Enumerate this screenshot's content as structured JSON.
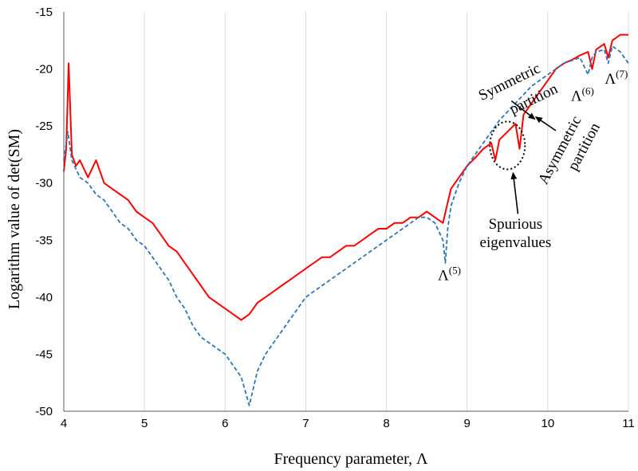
{
  "chart_data": {
    "type": "line",
    "title": "",
    "xlabel": "Frequency parameter, Λ",
    "ylabel": "Logarithm value of det(SM)",
    "xlim": [
      4,
      11
    ],
    "ylim": [
      -50,
      -15
    ],
    "xticks": [
      "4",
      "5",
      "6",
      "7",
      "8",
      "9",
      "10",
      "11"
    ],
    "yticks": [
      "-15",
      "-20",
      "-25",
      "-30",
      "-35",
      "-40",
      "-45",
      "-50"
    ],
    "grid": "vertical",
    "legend": "none",
    "series": [
      {
        "style": "solid",
        "color": "#ff0000",
        "x": [
          4.0,
          4.03,
          4.06,
          4.1,
          4.15,
          4.2,
          4.3,
          4.4,
          4.5,
          4.6,
          4.7,
          4.8,
          4.9,
          5.0,
          5.1,
          5.2,
          5.3,
          5.4,
          5.5,
          5.6,
          5.7,
          5.8,
          5.9,
          6.0,
          6.1,
          6.2,
          6.3,
          6.4,
          6.5,
          6.6,
          6.7,
          6.8,
          6.9,
          7.0,
          7.1,
          7.2,
          7.3,
          7.4,
          7.5,
          7.6,
          7.7,
          7.8,
          7.9,
          8.0,
          8.1,
          8.2,
          8.3,
          8.4,
          8.5,
          8.6,
          8.7,
          8.75,
          8.8,
          8.9,
          9.0,
          9.1,
          9.2,
          9.3,
          9.35,
          9.4,
          9.5,
          9.6,
          9.65,
          9.7,
          9.8,
          9.9,
          10.0,
          10.1,
          10.2,
          10.3,
          10.4,
          10.5,
          10.55,
          10.6,
          10.7,
          10.75,
          10.8,
          10.9,
          11.0
        ],
        "y": [
          -29.0,
          -27.0,
          -19.5,
          -27.5,
          -28.5,
          -28.0,
          -29.5,
          -28.0,
          -30.0,
          -30.5,
          -31.0,
          -31.5,
          -32.5,
          -33.0,
          -33.5,
          -34.5,
          -35.5,
          -36.0,
          -37.0,
          -38.0,
          -39.0,
          -40.0,
          -40.5,
          -41.0,
          -41.5,
          -42.0,
          -41.5,
          -40.5,
          -40.0,
          -39.5,
          -39.0,
          -38.5,
          -38.0,
          -37.5,
          -37.0,
          -36.5,
          -36.5,
          -36.0,
          -35.5,
          -35.5,
          -35.0,
          -34.5,
          -34.0,
          -34.0,
          -33.5,
          -33.5,
          -33.0,
          -33.0,
          -32.5,
          -33.0,
          -33.5,
          -32.0,
          -30.5,
          -29.5,
          -28.5,
          -27.8,
          -27.0,
          -26.5,
          -28.0,
          -26.2,
          -25.5,
          -24.8,
          -27.0,
          -24.0,
          -23.0,
          -22.0,
          -21.0,
          -20.0,
          -19.5,
          -19.2,
          -18.8,
          -18.5,
          -20.0,
          -18.3,
          -17.8,
          -19.0,
          -17.5,
          -17.0,
          -17.0
        ]
      },
      {
        "style": "dashed",
        "color": "#2e75b6",
        "x": [
          4.0,
          4.05,
          4.1,
          4.2,
          4.3,
          4.4,
          4.5,
          4.6,
          4.7,
          4.8,
          4.9,
          5.0,
          5.1,
          5.2,
          5.3,
          5.4,
          5.5,
          5.6,
          5.7,
          5.8,
          5.9,
          6.0,
          6.1,
          6.2,
          6.3,
          6.4,
          6.5,
          6.6,
          6.7,
          6.8,
          6.9,
          7.0,
          7.1,
          7.2,
          7.3,
          7.4,
          7.5,
          7.6,
          7.7,
          7.8,
          7.9,
          8.0,
          8.1,
          8.2,
          8.3,
          8.4,
          8.5,
          8.6,
          8.7,
          8.73,
          8.76,
          8.8,
          8.9,
          9.0,
          9.2,
          9.4,
          9.6,
          9.8,
          10.0,
          10.2,
          10.4,
          10.5,
          10.55,
          10.6,
          10.7,
          10.75,
          10.8,
          10.9,
          11.0
        ],
        "y": [
          -28.0,
          -25.5,
          -28.0,
          -29.5,
          -30.0,
          -31.0,
          -31.5,
          -32.5,
          -33.5,
          -34.0,
          -35.0,
          -35.5,
          -36.5,
          -37.5,
          -38.5,
          -40.0,
          -41.0,
          -42.5,
          -43.5,
          -44.0,
          -44.5,
          -45.0,
          -46.0,
          -47.0,
          -49.5,
          -46.5,
          -45.0,
          -44.0,
          -43.0,
          -42.0,
          -41.0,
          -40.0,
          -39.5,
          -39.0,
          -38.5,
          -38.0,
          -37.5,
          -37.0,
          -36.5,
          -36.0,
          -35.5,
          -35.0,
          -34.5,
          -34.0,
          -33.5,
          -33.0,
          -33.0,
          -33.5,
          -35.0,
          -37.0,
          -34.0,
          -32.0,
          -30.0,
          -28.5,
          -26.5,
          -24.5,
          -23.0,
          -21.5,
          -20.5,
          -19.5,
          -19.0,
          -20.5,
          -19.0,
          -18.5,
          -18.3,
          -19.5,
          -18.0,
          -18.5,
          -19.5
        ]
      }
    ],
    "annotations": [
      {
        "text": "Symmetric",
        "data_x": 9.55,
        "data_y": -21.5
      },
      {
        "text": "partition",
        "data_x": 9.85,
        "data_y": -23.0
      },
      {
        "text": "Asymmetric",
        "data_x": 10.2,
        "data_y": -27.3,
        "rotate": -62
      },
      {
        "text": "partition",
        "data_x": 10.5,
        "data_y": -27.0,
        "rotate": -62
      },
      {
        "text": "Spurious",
        "data_x": 9.6,
        "data_y": -34.0
      },
      {
        "text": "eigenvalues",
        "data_x": 9.6,
        "data_y": -35.6
      }
    ],
    "lambda_labels": [
      {
        "base": "Λ",
        "sup": "(5)",
        "data_x": 8.78,
        "data_y": -38.5
      },
      {
        "base": "Λ",
        "sup": "(6)",
        "data_x": 10.43,
        "data_y": -22.8
      },
      {
        "base": "Λ",
        "sup": "(7)",
        "data_x": 10.85,
        "data_y": -21.3
      }
    ]
  }
}
